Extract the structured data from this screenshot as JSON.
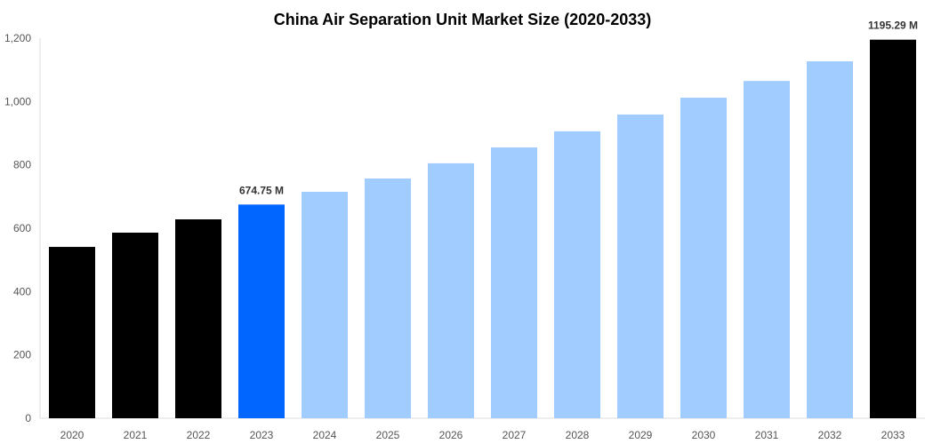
{
  "chart_data": {
    "type": "bar",
    "title": "China Air Separation Unit Market Size (2020-2033)",
    "xlabel": "",
    "ylabel": "",
    "ylim": [
      0,
      1200
    ],
    "yticks": [
      0,
      200,
      400,
      600,
      800,
      1000,
      1200
    ],
    "ytick_labels": [
      "0",
      "200",
      "400",
      "600",
      "800",
      "1,000",
      "1,200"
    ],
    "grid": false,
    "categories": [
      "2020",
      "2021",
      "2022",
      "2023",
      "2024",
      "2025",
      "2026",
      "2027",
      "2028",
      "2029",
      "2030",
      "2031",
      "2032",
      "2033"
    ],
    "values": [
      541,
      586,
      628,
      674.75,
      715,
      757,
      805,
      855,
      906,
      959,
      1012,
      1065,
      1127,
      1195.29
    ],
    "bar_colors": [
      "#000000",
      "#000000",
      "#000000",
      "#0066FF",
      "#A0CCFF",
      "#A0CCFF",
      "#A0CCFF",
      "#A0CCFF",
      "#A0CCFF",
      "#A0CCFF",
      "#A0CCFF",
      "#A0CCFF",
      "#A0CCFF",
      "#000000"
    ],
    "data_labels": [
      {
        "category": "2023",
        "text": "674.75 M"
      },
      {
        "category": "2033",
        "text": "1195.29 M"
      }
    ]
  }
}
